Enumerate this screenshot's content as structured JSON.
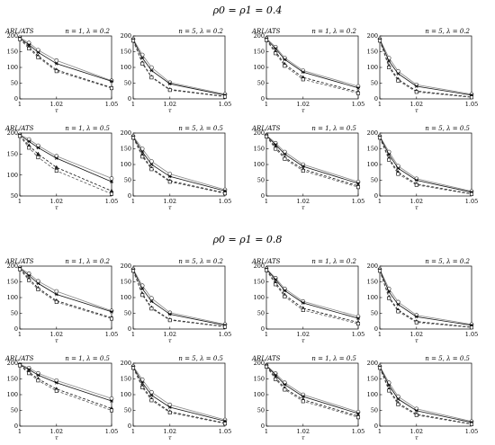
{
  "figure": {
    "sections": [
      {
        "title": "ρ0 = ρ1 = 0.4"
      },
      {
        "title": "ρ0 = ρ1 = 0.8"
      }
    ],
    "ylabel": "ARL/ATS",
    "xlabel": "τ"
  },
  "chart_data": [
    {
      "type": "line",
      "section": 0,
      "title": "n = 1, λ = 0.2",
      "x": [
        1,
        1.005,
        1.01,
        1.02,
        1.05
      ],
      "xticks": [
        "1",
        "1.02",
        "1.05"
      ],
      "ylim": [
        0,
        200
      ],
      "yticks": [
        0,
        50,
        100,
        150,
        200
      ],
      "series": [
        {
          "marker": "circle",
          "dash": "solid",
          "values": [
            195,
            178,
            155,
            122,
            58
          ]
        },
        {
          "marker": "asterisk",
          "dash": "solid",
          "values": [
            193,
            172,
            148,
            112,
            56
          ]
        },
        {
          "marker": "triangle",
          "dash": "dash",
          "values": [
            192,
            165,
            136,
            92,
            36
          ]
        },
        {
          "marker": "square",
          "dash": "dash",
          "values": [
            190,
            160,
            132,
            88,
            34
          ]
        }
      ]
    },
    {
      "type": "line",
      "section": 0,
      "title": "n = 5, λ = 0.2",
      "x": [
        1,
        1.005,
        1.01,
        1.02,
        1.05
      ],
      "xticks": [
        "1",
        "1.02",
        "1.05"
      ],
      "ylim": [
        0,
        200
      ],
      "yticks": [
        0,
        50,
        100,
        150,
        200
      ],
      "series": [
        {
          "marker": "circle",
          "dash": "solid",
          "values": [
            190,
            140,
            100,
            52,
            15
          ]
        },
        {
          "marker": "asterisk",
          "dash": "solid",
          "values": [
            188,
            130,
            90,
            48,
            12
          ]
        },
        {
          "marker": "triangle",
          "dash": "dash",
          "values": [
            186,
            115,
            70,
            30,
            8
          ]
        },
        {
          "marker": "square",
          "dash": "dash",
          "values": [
            185,
            112,
            68,
            28,
            7
          ]
        }
      ]
    },
    {
      "type": "line",
      "section": 0,
      "title": "n = 1, λ = 0.2",
      "x": [
        1,
        1.005,
        1.01,
        1.02,
        1.05
      ],
      "xticks": [
        "1",
        "1.02",
        "1.05"
      ],
      "ylim": [
        0,
        200
      ],
      "yticks": [
        0,
        50,
        100,
        150,
        200
      ],
      "series": [
        {
          "marker": "circle",
          "dash": "solid",
          "values": [
            192,
            165,
            130,
            90,
            40
          ]
        },
        {
          "marker": "asterisk",
          "dash": "solid",
          "values": [
            190,
            160,
            125,
            85,
            35
          ]
        },
        {
          "marker": "triangle",
          "dash": "dash",
          "values": [
            188,
            150,
            110,
            68,
            22
          ]
        },
        {
          "marker": "square",
          "dash": "dash",
          "values": [
            187,
            145,
            105,
            62,
            18
          ]
        }
      ]
    },
    {
      "type": "line",
      "section": 0,
      "title": "n = 5, λ = 0.2",
      "x": [
        1,
        1.005,
        1.01,
        1.02,
        1.05
      ],
      "xticks": [
        "1",
        "1.02",
        "1.05"
      ],
      "ylim": [
        0,
        200
      ],
      "yticks": [
        0,
        50,
        100,
        150,
        200
      ],
      "series": [
        {
          "marker": "circle",
          "dash": "solid",
          "values": [
            190,
            130,
            88,
            45,
            15
          ]
        },
        {
          "marker": "asterisk",
          "dash": "solid",
          "values": [
            188,
            120,
            80,
            40,
            12
          ]
        },
        {
          "marker": "triangle",
          "dash": "dash",
          "values": [
            186,
            105,
            62,
            25,
            6
          ]
        },
        {
          "marker": "square",
          "dash": "dash",
          "values": [
            185,
            100,
            58,
            22,
            5
          ]
        }
      ]
    },
    {
      "type": "line",
      "section": 0,
      "title": "n = 1, λ = 0.5",
      "x": [
        1,
        1.005,
        1.01,
        1.02,
        1.05
      ],
      "xticks": [
        "1",
        "1.02",
        "1.05"
      ],
      "ylim": [
        50,
        200
      ],
      "yticks": [
        50,
        100,
        150,
        200
      ],
      "series": [
        {
          "marker": "circle",
          "dash": "solid",
          "values": [
            196,
            185,
            170,
            145,
            92
          ]
        },
        {
          "marker": "asterisk",
          "dash": "solid",
          "values": [
            195,
            180,
            165,
            140,
            84
          ]
        },
        {
          "marker": "triangle",
          "dash": "dash",
          "values": [
            194,
            170,
            150,
            118,
            62
          ]
        },
        {
          "marker": "square",
          "dash": "dash",
          "values": [
            193,
            165,
            142,
            110,
            55
          ]
        }
      ]
    },
    {
      "type": "line",
      "section": 0,
      "title": "n = 5, λ = 0.5",
      "x": [
        1,
        1.005,
        1.01,
        1.02,
        1.05
      ],
      "xticks": [
        "1",
        "1.02",
        "1.05"
      ],
      "ylim": [
        0,
        200
      ],
      "yticks": [
        0,
        50,
        100,
        150,
        200
      ],
      "series": [
        {
          "marker": "circle",
          "dash": "solid",
          "values": [
            190,
            150,
            110,
            70,
            20
          ]
        },
        {
          "marker": "asterisk",
          "dash": "solid",
          "values": [
            188,
            140,
            100,
            62,
            16
          ]
        },
        {
          "marker": "triangle",
          "dash": "dash",
          "values": [
            186,
            130,
            88,
            48,
            10
          ]
        },
        {
          "marker": "square",
          "dash": "dash",
          "values": [
            185,
            125,
            85,
            45,
            8
          ]
        }
      ]
    },
    {
      "type": "line",
      "section": 0,
      "title": "n = 1, λ = 0.5",
      "x": [
        1,
        1.005,
        1.01,
        1.02,
        1.05
      ],
      "xticks": [
        "1",
        "1.02",
        "1.05"
      ],
      "ylim": [
        0,
        200
      ],
      "yticks": [
        0,
        50,
        100,
        150,
        200
      ],
      "series": [
        {
          "marker": "circle",
          "dash": "solid",
          "values": [
            193,
            168,
            140,
            100,
            45
          ]
        },
        {
          "marker": "asterisk",
          "dash": "solid",
          "values": [
            192,
            163,
            133,
            94,
            40
          ]
        },
        {
          "marker": "triangle",
          "dash": "dash",
          "values": [
            190,
            155,
            122,
            85,
            32
          ]
        },
        {
          "marker": "square",
          "dash": "dash",
          "values": [
            189,
            150,
            118,
            80,
            28
          ]
        }
      ]
    },
    {
      "type": "line",
      "section": 0,
      "title": "n = 5, λ = 0.5",
      "x": [
        1,
        1.005,
        1.01,
        1.02,
        1.05
      ],
      "xticks": [
        "1",
        "1.02",
        "1.05"
      ],
      "ylim": [
        0,
        200
      ],
      "yticks": [
        0,
        50,
        100,
        150,
        200
      ],
      "series": [
        {
          "marker": "circle",
          "dash": "solid",
          "values": [
            190,
            140,
            95,
            55,
            15
          ]
        },
        {
          "marker": "asterisk",
          "dash": "solid",
          "values": [
            188,
            132,
            88,
            50,
            12
          ]
        },
        {
          "marker": "triangle",
          "dash": "dash",
          "values": [
            186,
            120,
            75,
            38,
            7
          ]
        },
        {
          "marker": "square",
          "dash": "dash",
          "values": [
            185,
            115,
            70,
            35,
            6
          ]
        }
      ]
    },
    {
      "type": "line",
      "section": 1,
      "title": "n = 1, λ = 0.2",
      "x": [
        1,
        1.005,
        1.01,
        1.02,
        1.05
      ],
      "xticks": [
        "1",
        "1.02",
        "1.05"
      ],
      "ylim": [
        0,
        200
      ],
      "yticks": [
        0,
        50,
        100,
        150,
        200
      ],
      "series": [
        {
          "marker": "circle",
          "dash": "solid",
          "values": [
            195,
            176,
            152,
            120,
            58
          ]
        },
        {
          "marker": "asterisk",
          "dash": "solid",
          "values": [
            193,
            170,
            145,
            110,
            55
          ]
        },
        {
          "marker": "triangle",
          "dash": "dash",
          "values": [
            192,
            160,
            130,
            90,
            36
          ]
        },
        {
          "marker": "square",
          "dash": "dash",
          "values": [
            190,
            155,
            126,
            86,
            33
          ]
        }
      ]
    },
    {
      "type": "line",
      "section": 1,
      "title": "n = 5, λ = 0.2",
      "x": [
        1,
        1.005,
        1.01,
        1.02,
        1.05
      ],
      "xticks": [
        "1",
        "1.02",
        "1.05"
      ],
      "ylim": [
        0,
        200
      ],
      "yticks": [
        0,
        50,
        100,
        150,
        200
      ],
      "series": [
        {
          "marker": "circle",
          "dash": "solid",
          "values": [
            190,
            138,
            98,
            52,
            15
          ]
        },
        {
          "marker": "asterisk",
          "dash": "solid",
          "values": [
            188,
            128,
            88,
            47,
            12
          ]
        },
        {
          "marker": "triangle",
          "dash": "dash",
          "values": [
            186,
            112,
            68,
            30,
            8
          ]
        },
        {
          "marker": "square",
          "dash": "dash",
          "values": [
            185,
            108,
            65,
            28,
            7
          ]
        }
      ]
    },
    {
      "type": "line",
      "section": 1,
      "title": "n = 1, λ = 0.2",
      "x": [
        1,
        1.005,
        1.01,
        1.02,
        1.05
      ],
      "xticks": [
        "1",
        "1.02",
        "1.05"
      ],
      "ylim": [
        0,
        200
      ],
      "yticks": [
        0,
        50,
        100,
        150,
        200
      ],
      "series": [
        {
          "marker": "circle",
          "dash": "solid",
          "values": [
            192,
            162,
            128,
            88,
            40
          ]
        },
        {
          "marker": "asterisk",
          "dash": "solid",
          "values": [
            190,
            157,
            122,
            83,
            34
          ]
        },
        {
          "marker": "triangle",
          "dash": "dash",
          "values": [
            188,
            147,
            108,
            66,
            21
          ]
        },
        {
          "marker": "square",
          "dash": "dash",
          "values": [
            187,
            142,
            103,
            60,
            17
          ]
        }
      ]
    },
    {
      "type": "line",
      "section": 1,
      "title": "n = 5, λ = 0.2",
      "x": [
        1,
        1.005,
        1.01,
        1.02,
        1.05
      ],
      "xticks": [
        "1",
        "1.02",
        "1.05"
      ],
      "ylim": [
        0,
        200
      ],
      "yticks": [
        0,
        50,
        100,
        150,
        200
      ],
      "series": [
        {
          "marker": "circle",
          "dash": "solid",
          "values": [
            190,
            128,
            86,
            44,
            15
          ]
        },
        {
          "marker": "asterisk",
          "dash": "solid",
          "values": [
            188,
            118,
            78,
            39,
            12
          ]
        },
        {
          "marker": "triangle",
          "dash": "dash",
          "values": [
            186,
            102,
            60,
            24,
            6
          ]
        },
        {
          "marker": "square",
          "dash": "dash",
          "values": [
            185,
            98,
            56,
            21,
            5
          ]
        }
      ]
    },
    {
      "type": "line",
      "section": 1,
      "title": "n = 1, λ = 0.5",
      "x": [
        1,
        1.005,
        1.01,
        1.02,
        1.05
      ],
      "xticks": [
        "1",
        "1.02",
        "1.05"
      ],
      "ylim": [
        0,
        200
      ],
      "yticks": [
        0,
        50,
        100,
        150,
        200
      ],
      "series": [
        {
          "marker": "circle",
          "dash": "solid",
          "values": [
            196,
            185,
            168,
            145,
            88
          ]
        },
        {
          "marker": "asterisk",
          "dash": "solid",
          "values": [
            195,
            180,
            162,
            138,
            80
          ]
        },
        {
          "marker": "triangle",
          "dash": "dash",
          "values": [
            194,
            172,
            150,
            118,
            56
          ]
        },
        {
          "marker": "square",
          "dash": "dash",
          "values": [
            193,
            168,
            145,
            112,
            50
          ]
        }
      ]
    },
    {
      "type": "line",
      "section": 1,
      "title": "n = 5, λ = 0.5",
      "x": [
        1,
        1.005,
        1.01,
        1.02,
        1.05
      ],
      "xticks": [
        "1",
        "1.02",
        "1.05"
      ],
      "ylim": [
        0,
        200
      ],
      "yticks": [
        0,
        50,
        100,
        150,
        200
      ],
      "series": [
        {
          "marker": "circle",
          "dash": "solid",
          "values": [
            190,
            148,
            108,
            68,
            20
          ]
        },
        {
          "marker": "asterisk",
          "dash": "solid",
          "values": [
            188,
            138,
            98,
            60,
            16
          ]
        },
        {
          "marker": "triangle",
          "dash": "dash",
          "values": [
            186,
            128,
            86,
            46,
            10
          ]
        },
        {
          "marker": "square",
          "dash": "dash",
          "values": [
            185,
            123,
            82,
            43,
            8
          ]
        }
      ]
    },
    {
      "type": "line",
      "section": 1,
      "title": "n = 1, λ = 0.5",
      "x": [
        1,
        1.005,
        1.01,
        1.02,
        1.05
      ],
      "xticks": [
        "1",
        "1.02",
        "1.05"
      ],
      "ylim": [
        0,
        200
      ],
      "yticks": [
        0,
        50,
        100,
        150,
        200
      ],
      "series": [
        {
          "marker": "circle",
          "dash": "solid",
          "values": [
            193,
            167,
            138,
            100,
            45
          ]
        },
        {
          "marker": "asterisk",
          "dash": "solid",
          "values": [
            192,
            162,
            132,
            94,
            40
          ]
        },
        {
          "marker": "triangle",
          "dash": "dash",
          "values": [
            190,
            154,
            120,
            84,
            32
          ]
        },
        {
          "marker": "square",
          "dash": "dash",
          "values": [
            189,
            149,
            116,
            79,
            28
          ]
        }
      ]
    },
    {
      "type": "line",
      "section": 1,
      "title": "n = 5, λ = 0.5",
      "x": [
        1,
        1.005,
        1.01,
        1.02,
        1.05
      ],
      "xticks": [
        "1",
        "1.02",
        "1.05"
      ],
      "ylim": [
        0,
        200
      ],
      "yticks": [
        0,
        50,
        100,
        150,
        200
      ],
      "series": [
        {
          "marker": "circle",
          "dash": "solid",
          "values": [
            190,
            138,
            94,
            55,
            15
          ]
        },
        {
          "marker": "asterisk",
          "dash": "solid",
          "values": [
            188,
            130,
            86,
            49,
            12
          ]
        },
        {
          "marker": "triangle",
          "dash": "dash",
          "values": [
            186,
            118,
            73,
            38,
            7
          ]
        },
        {
          "marker": "square",
          "dash": "dash",
          "values": [
            185,
            113,
            69,
            35,
            6
          ]
        }
      ]
    }
  ]
}
